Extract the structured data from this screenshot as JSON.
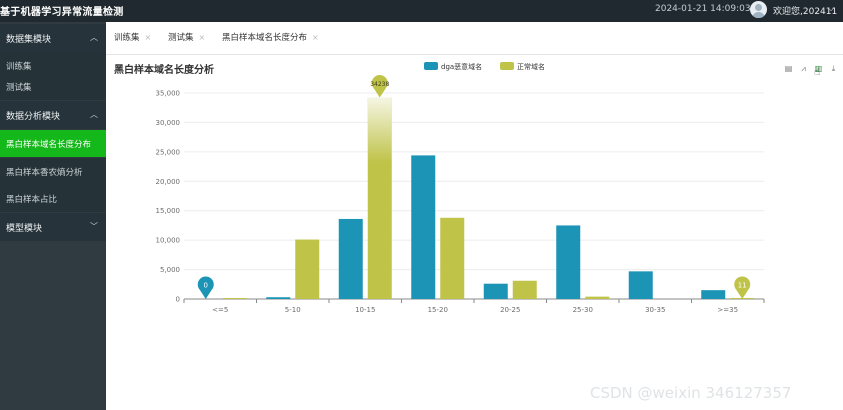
{
  "app": {
    "title": "基于机器学习异常流量检测",
    "datetime": "2024-01-21 14:09:03",
    "welcome": "欢迎您,202411",
    "avatar_icon": "user-avatar-icon",
    "chevron_icon": "chevron-down-icon"
  },
  "sidebar": {
    "groups": [
      {
        "label": "数据集模块",
        "expanded": true,
        "items": [
          {
            "label": "训练集"
          },
          {
            "label": "测试集"
          }
        ]
      },
      {
        "label": "数据分析模块",
        "expanded": true,
        "items": [
          {
            "label": "黑白样本域名长度分布",
            "active": true
          },
          {
            "label": "黑白样本香农熵分析"
          },
          {
            "label": "黑白样本占比"
          }
        ]
      },
      {
        "label": "模型模块",
        "expanded": false,
        "items": []
      }
    ]
  },
  "tabs": [
    {
      "label": "训练集",
      "close": "×"
    },
    {
      "label": "测试集",
      "close": "×"
    },
    {
      "label": "黑白样本域名长度分布",
      "close": "×",
      "active": true
    }
  ],
  "chart_data": {
    "type": "bar",
    "title": "黑白样本域名长度分析",
    "categories": [
      "<=5",
      "5-10",
      "10-15",
      "15-20",
      "20-25",
      "25-30",
      "30-35",
      ">=35"
    ],
    "series": [
      {
        "name": "dga恶意域名",
        "color": "#1c94b6",
        "values": [
          0,
          300,
          13600,
          24400,
          2600,
          12500,
          4700,
          1500
        ]
      },
      {
        "name": "正常域名",
        "color": "#bfc348",
        "values": [
          60,
          10100,
          34238,
          13800,
          3100,
          400,
          0,
          11
        ]
      }
    ],
    "ylim": [
      0,
      35000
    ],
    "yticks": [
      0,
      5000,
      10000,
      15000,
      20000,
      25000,
      30000,
      35000
    ],
    "ytick_labels": [
      "0",
      "5,000",
      "10,000",
      "15,000",
      "20,000",
      "25,000",
      "30,000",
      "35,000"
    ],
    "markers": [
      {
        "label": "0",
        "series": 0,
        "index": 0,
        "color": "#1c94b6"
      },
      {
        "label": "34238",
        "series": 1,
        "index": 2,
        "color": "#bfc348"
      },
      {
        "label": "11",
        "series": 1,
        "index": 7,
        "color": "#bfc348"
      }
    ],
    "grid": true,
    "legend": "top-center"
  },
  "toolbox": [
    {
      "icon": "data-view-icon",
      "glyph": "▤"
    },
    {
      "icon": "line-switch-icon",
      "glyph": "⩘"
    },
    {
      "icon": "bar-switch-icon",
      "glyph": "▥"
    },
    {
      "icon": "save-image-icon",
      "glyph": "⤓"
    }
  ],
  "watermark": "CSDN @weixin 346127357"
}
